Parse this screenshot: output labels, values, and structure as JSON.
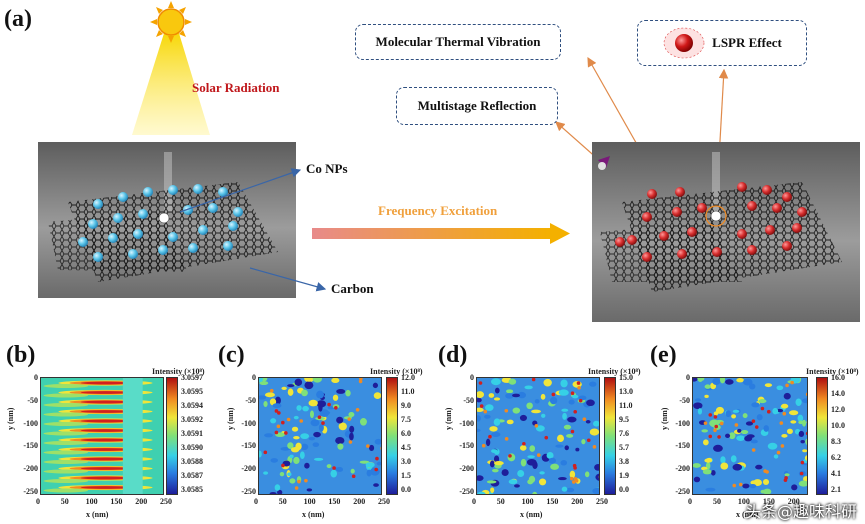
{
  "panel_a": {
    "letter": "(a)",
    "solar_label": "Solar Radiation",
    "co_label": "Co NPs",
    "carbon_label": "Carbon",
    "frequency_label": "Frequency Excitation",
    "callout_vibration": "Molecular Thermal Vibration",
    "callout_lspr": "LSPR Effect",
    "callout_reflection": "Multistage Reflection"
  },
  "colors": {
    "co_np": "#5ec7ea",
    "co_np_excited": "#d93030",
    "solar": "#f5c400",
    "solar_label": "#c0181c",
    "frequency_label": "#f0a03c",
    "arrow_orange": "#e08a4a",
    "arrow_blue": "#3a66a8",
    "callout_border": "#2f4f7f"
  },
  "maps": [
    {
      "letter": "(b)",
      "colorbar_title": "Intensity (×10⁸)",
      "colorbar_ticks": [
        "3.0597",
        "3.0595",
        "3.0594",
        "3.0592",
        "3.0591",
        "3.0590",
        "3.0588",
        "3.0587",
        "3.0585"
      ],
      "xlabel": "x (nm)",
      "ylabel": "y (nm)",
      "xticks": [
        "0",
        "50",
        "100",
        "150",
        "200",
        "250"
      ],
      "yticks": [
        "0",
        "-50",
        "-100",
        "-150",
        "-200",
        "-250"
      ]
    },
    {
      "letter": "(c)",
      "colorbar_title": "Intensity (×10⁸)",
      "colorbar_ticks": [
        "12.0",
        "11.0",
        "9.0",
        "7.5",
        "6.0",
        "4.5",
        "3.0",
        "1.5",
        "0.0"
      ],
      "xlabel": "x (nm)",
      "ylabel": "y (nm)",
      "xticks": [
        "0",
        "50",
        "100",
        "150",
        "200",
        "250"
      ],
      "yticks": [
        "0",
        "-50",
        "-100",
        "-150",
        "-200",
        "-250"
      ]
    },
    {
      "letter": "(d)",
      "colorbar_title": "Intensity (×10⁸)",
      "colorbar_ticks": [
        "15.0",
        "13.0",
        "11.0",
        "9.5",
        "7.6",
        "5.7",
        "3.8",
        "1.9",
        "0.0"
      ],
      "xlabel": "x (nm)",
      "ylabel": "y (nm)",
      "xticks": [
        "0",
        "50",
        "100",
        "150",
        "200",
        "250"
      ],
      "yticks": [
        "0",
        "-50",
        "-100",
        "-150",
        "-200",
        "-250"
      ]
    },
    {
      "letter": "(e)",
      "colorbar_title": "Intensity (×10⁸)",
      "colorbar_ticks": [
        "16.0",
        "14.0",
        "12.0",
        "10.0",
        "8.3",
        "6.2",
        "4.1",
        "2.1"
      ],
      "xlabel": "x (nm)",
      "ylabel": "y (nm)",
      "xticks": [
        "0",
        "50",
        "100",
        "150",
        "200"
      ],
      "yticks": [
        "0",
        "-50",
        "-100",
        "-150",
        "-200",
        "-250"
      ]
    }
  ],
  "watermark": "头条@趣味科研"
}
